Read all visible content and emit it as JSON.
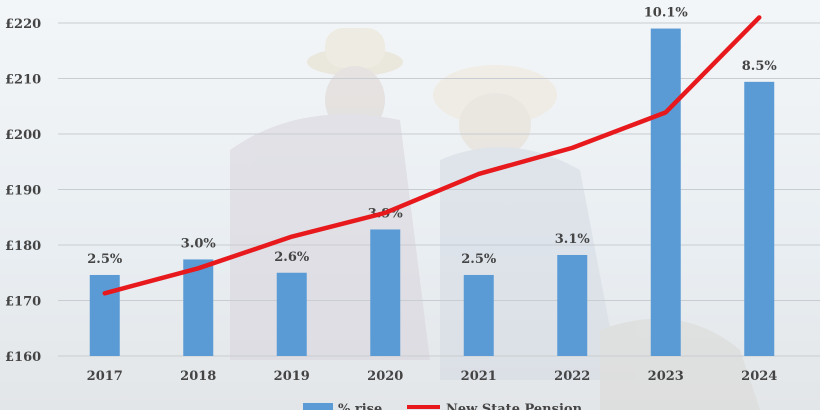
{
  "chart_data": {
    "type": "bar+line",
    "categories": [
      "2017",
      "2018",
      "2019",
      "2020",
      "2021",
      "2022",
      "2023",
      "2024"
    ],
    "series": [
      {
        "name": "% rise",
        "type": "bar",
        "values": [
          174.6,
          177.4,
          175.0,
          182.8,
          174.6,
          178.2,
          219.0,
          209.4
        ],
        "labels": [
          "2.5%",
          "3.0%",
          "2.6%",
          "3.9%",
          "2.5%",
          "3.1%",
          "10.1%",
          "8.5%"
        ],
        "color": "#5b9bd5"
      },
      {
        "name": "New State Pension",
        "type": "line",
        "values": [
          171.3,
          175.8,
          181.5,
          185.8,
          192.8,
          197.5,
          203.9,
          221.0
        ],
        "color": "#e8191d"
      }
    ],
    "title": "",
    "xlabel": "",
    "ylabel": "",
    "ylim": [
      160,
      220
    ],
    "yticks": [
      "£160",
      "£170",
      "£180",
      "£190",
      "£200",
      "£210",
      "£220"
    ],
    "grid": true,
    "legend": "bottom"
  }
}
